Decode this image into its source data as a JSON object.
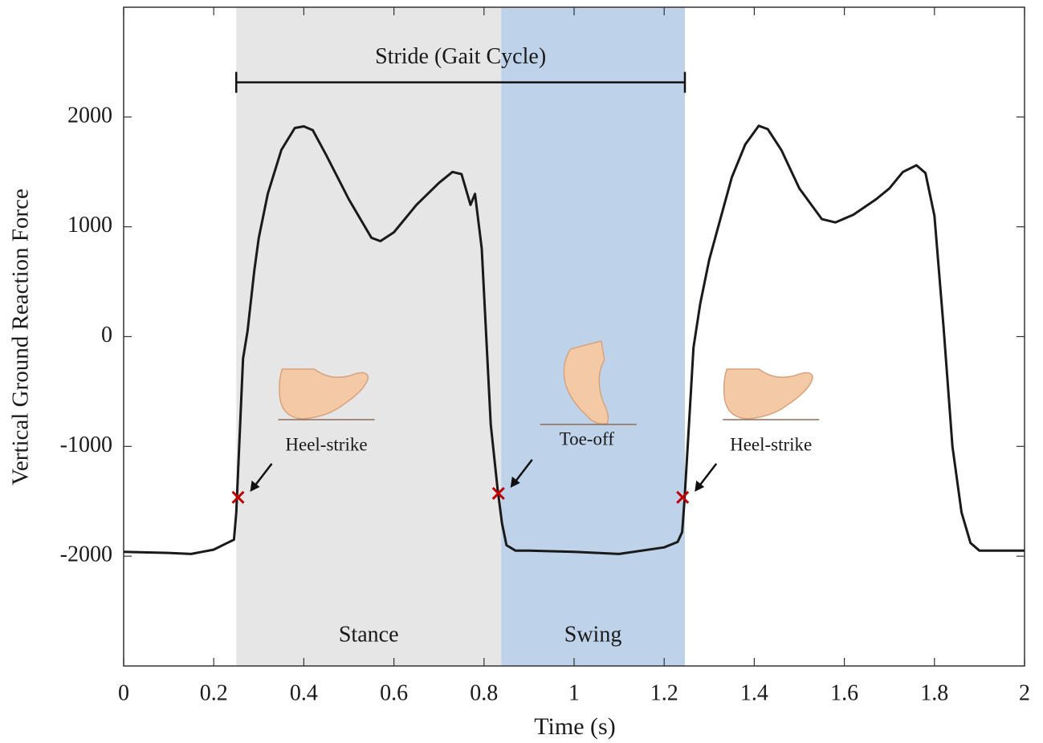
{
  "chart_data": {
    "type": "line",
    "xlabel": "Time (s)",
    "ylabel": "Vertical Ground Reaction Force",
    "x": [
      0,
      0.1,
      0.15,
      0.2,
      0.23,
      0.245,
      0.25,
      0.265,
      0.275,
      0.29,
      0.3,
      0.32,
      0.35,
      0.38,
      0.4,
      0.42,
      0.45,
      0.5,
      0.55,
      0.57,
      0.6,
      0.65,
      0.7,
      0.73,
      0.75,
      0.77,
      0.78,
      0.795,
      0.805,
      0.815,
      0.83,
      0.84,
      0.85,
      0.87,
      0.9,
      1.0,
      1.1,
      1.2,
      1.23,
      1.24,
      1.245,
      1.255,
      1.265,
      1.28,
      1.3,
      1.32,
      1.35,
      1.38,
      1.41,
      1.43,
      1.46,
      1.5,
      1.55,
      1.58,
      1.62,
      1.67,
      1.7,
      1.73,
      1.76,
      1.78,
      1.8,
      1.82,
      1.84,
      1.86,
      1.88,
      1.9,
      2.0
    ],
    "values": [
      -1960,
      -1970,
      -1980,
      -1940,
      -1880,
      -1850,
      -1600,
      -200,
      50,
      600,
      900,
      1300,
      1700,
      1900,
      1915,
      1880,
      1650,
      1250,
      900,
      870,
      950,
      1200,
      1400,
      1500,
      1480,
      1200,
      1300,
      800,
      0,
      -800,
      -1380,
      -1700,
      -1900,
      -1950,
      -1950,
      -1960,
      -1980,
      -1920,
      -1870,
      -1780,
      -1500,
      -800,
      -100,
      300,
      700,
      1000,
      1450,
      1750,
      1920,
      1890,
      1700,
      1350,
      1070,
      1040,
      1110,
      1250,
      1350,
      1500,
      1560,
      1490,
      1100,
      100,
      -1000,
      -1600,
      -1880,
      -1950,
      -1950
    ],
    "color": "#1a1a1a",
    "xlim": [
      0,
      2
    ],
    "xticks": [
      0,
      0.2,
      0.4,
      0.6,
      0.8,
      1,
      1.2,
      1.4,
      1.6,
      1.8,
      2
    ],
    "ylim": [
      -3000,
      3000
    ],
    "yticks": [
      -2000,
      -1000,
      0,
      1000,
      2000
    ],
    "regions": [
      {
        "label": "Stance",
        "start": 0.25,
        "end": 0.838,
        "color": "#e6e6e6"
      },
      {
        "label": "Swing",
        "start": 0.838,
        "end": 1.246,
        "color": "#bed3ea"
      }
    ],
    "stride": {
      "label": "Stride (Gait Cycle)",
      "start": 0.25,
      "end": 1.246,
      "y": 2316
    },
    "events": [
      {
        "label": "Heel-strike",
        "x": 0.254,
        "y": -1464
      },
      {
        "label": "Toe-off",
        "x": 0.832,
        "y": -1428
      },
      {
        "label": "Heel-strike",
        "x": 1.241,
        "y": -1464
      }
    ],
    "marker_color": "#c00000"
  }
}
